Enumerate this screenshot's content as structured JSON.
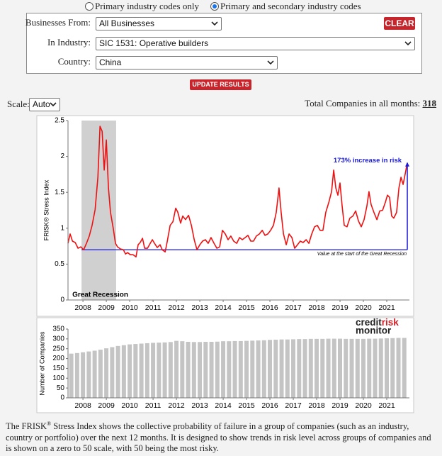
{
  "radio": {
    "options": [
      "Primary industry codes only",
      "Primary and secondary industry codes"
    ],
    "selected": 1
  },
  "form": {
    "fields": [
      {
        "label": "Businesses From:",
        "value": "All Businesses"
      },
      {
        "label": "In Industry:",
        "value": "SIC 1531: Operative builders"
      },
      {
        "label": "Country:",
        "value": "China"
      }
    ],
    "clear": "CLEAR"
  },
  "update": "UPDATE RESULTS",
  "scale": {
    "label": "Scale:",
    "value": "Auto"
  },
  "total": {
    "label": "Total Companies in all months:",
    "value": 318
  },
  "chart_data": [
    {
      "type": "line",
      "y_label": "FRISK® Stress Index",
      "color": "#ee1111",
      "xlim": [
        2007.36,
        2021.97
      ],
      "xticks": [
        2008,
        2009,
        2010,
        2011,
        2012,
        2013,
        2014,
        2015,
        2016,
        2017,
        2018,
        2019,
        2020,
        2021
      ],
      "ylim": [
        0,
        2.5
      ],
      "yticks": [
        0,
        0.5,
        1,
        1.5,
        2,
        2.5
      ],
      "recession": {
        "label": "Great Recession",
        "xrange": [
          2007.94,
          2009.42
        ]
      },
      "baseline": {
        "value": 0.7,
        "label": "Value at the start of the Great Recession",
        "color": "#1a1adb"
      },
      "increase_label": "173% increase in risk",
      "x": [
        2007.36,
        2007.45,
        2007.55,
        2007.67,
        2007.79,
        2007.91,
        2008.03,
        2008.15,
        2008.27,
        2008.39,
        2008.52,
        2008.64,
        2008.73,
        2008.82,
        2008.91,
        2009.0,
        2009.09,
        2009.18,
        2009.3,
        2009.39,
        2009.48,
        2009.61,
        2009.73,
        2009.82,
        2009.91,
        2010.03,
        2010.15,
        2010.27,
        2010.36,
        2010.45,
        2010.55,
        2010.64,
        2010.76,
        2010.88,
        2010.97,
        2011.06,
        2011.18,
        2011.3,
        2011.39,
        2011.52,
        2011.61,
        2011.73,
        2011.85,
        2011.97,
        2012.06,
        2012.18,
        2012.27,
        2012.39,
        2012.52,
        2012.64,
        2012.76,
        2012.88,
        2013.0,
        2013.12,
        2013.24,
        2013.36,
        2013.48,
        2013.61,
        2013.73,
        2013.85,
        2013.97,
        2014.09,
        2014.21,
        2014.33,
        2014.45,
        2014.58,
        2014.7,
        2014.82,
        2014.94,
        2015.06,
        2015.18,
        2015.3,
        2015.42,
        2015.55,
        2015.67,
        2015.79,
        2015.91,
        2016.03,
        2016.15,
        2016.27,
        2016.39,
        2016.48,
        2016.58,
        2016.7,
        2016.82,
        2016.94,
        2017.06,
        2017.18,
        2017.3,
        2017.42,
        2017.55,
        2017.67,
        2017.79,
        2017.91,
        2018.03,
        2018.15,
        2018.27,
        2018.39,
        2018.52,
        2018.64,
        2018.73,
        2018.82,
        2018.91,
        2019.0,
        2019.09,
        2019.18,
        2019.3,
        2019.42,
        2019.55,
        2019.67,
        2019.79,
        2019.91,
        2020.03,
        2020.15,
        2020.24,
        2020.33,
        2020.45,
        2020.58,
        2020.7,
        2020.82,
        2020.94,
        2021.03,
        2021.12,
        2021.21,
        2021.3,
        2021.42,
        2021.52,
        2021.61,
        2021.7,
        2021.79,
        2021.88
      ],
      "values": [
        0.79,
        0.92,
        0.82,
        0.8,
        0.72,
        0.74,
        0.7,
        0.79,
        0.89,
        1.04,
        1.26,
        1.71,
        2.42,
        2.35,
        1.81,
        2.23,
        1.56,
        1.22,
        0.99,
        0.79,
        0.74,
        0.71,
        0.7,
        0.64,
        0.66,
        0.63,
        0.63,
        0.6,
        0.77,
        0.8,
        0.86,
        0.72,
        0.72,
        0.79,
        0.84,
        0.79,
        0.73,
        0.77,
        0.7,
        0.67,
        0.82,
        1.04,
        1.09,
        1.28,
        1.22,
        1.07,
        1.17,
        1.12,
        1.18,
        1.04,
        0.84,
        0.7,
        0.77,
        0.82,
        0.84,
        0.79,
        0.87,
        0.79,
        0.72,
        0.74,
        0.97,
        0.92,
        0.84,
        0.89,
        0.82,
        0.79,
        0.87,
        0.84,
        0.87,
        0.9,
        0.82,
        0.82,
        0.89,
        0.92,
        0.97,
        0.9,
        0.92,
        0.97,
        1.04,
        1.22,
        1.56,
        1.22,
        0.92,
        0.77,
        0.92,
        0.87,
        0.72,
        0.77,
        0.82,
        0.8,
        0.84,
        0.79,
        0.92,
        1.02,
        1.04,
        0.97,
        0.97,
        1.22,
        1.36,
        1.51,
        1.81,
        1.56,
        1.46,
        1.63,
        1.31,
        1.04,
        1.02,
        1.14,
        1.17,
        1.24,
        1.1,
        1.02,
        1.12,
        1.31,
        1.51,
        1.33,
        1.22,
        1.12,
        1.24,
        1.25,
        1.36,
        1.46,
        1.43,
        1.17,
        1.14,
        1.22,
        1.56,
        1.71,
        1.61,
        1.76,
        1.91
      ]
    },
    {
      "type": "bar",
      "y_label": "Number of Companies",
      "color": "#c4c4c4",
      "logo": {
        "credit": "credit",
        "risk": "risk",
        "monitor": "monitor"
      },
      "xlim": [
        2007.36,
        2021.97
      ],
      "xticks": [
        2008,
        2009,
        2010,
        2011,
        2012,
        2013,
        2014,
        2015,
        2016,
        2017,
        2018,
        2019,
        2020,
        2021
      ],
      "ylim": [
        0,
        350
      ],
      "yticks": [
        0,
        50,
        100,
        150,
        200,
        250,
        300,
        350
      ],
      "x": [
        2007.5,
        2007.75,
        2008,
        2008.25,
        2008.5,
        2008.75,
        2009,
        2009.25,
        2009.5,
        2009.75,
        2010,
        2010.25,
        2010.5,
        2010.75,
        2011,
        2011.25,
        2011.5,
        2011.75,
        2012,
        2012.25,
        2012.5,
        2012.75,
        2013,
        2013.25,
        2013.5,
        2013.75,
        2014,
        2014.25,
        2014.5,
        2014.75,
        2015,
        2015.25,
        2015.5,
        2015.75,
        2016,
        2016.25,
        2016.5,
        2016.75,
        2017,
        2017.25,
        2017.5,
        2017.75,
        2018,
        2018.25,
        2018.5,
        2018.75,
        2019,
        2019.25,
        2019.5,
        2019.75,
        2020,
        2020.25,
        2020.5,
        2020.75,
        2021,
        2021.25,
        2021.5,
        2021.75
      ],
      "values": [
        225,
        228,
        232,
        236,
        240,
        245,
        252,
        258,
        264,
        268,
        272,
        274,
        276,
        278,
        280,
        281,
        282,
        284,
        290,
        288,
        285,
        284,
        284,
        285,
        285,
        286,
        288,
        288,
        289,
        289,
        290,
        291,
        292,
        293,
        295,
        296,
        297,
        297,
        298,
        299,
        299,
        300,
        300,
        300,
        301,
        301,
        301,
        300,
        300,
        300,
        300,
        301,
        301,
        302,
        303,
        304,
        305,
        305
      ]
    }
  ],
  "footer": {
    "before": "The FRISK",
    "sup": "®",
    "after": " Stress Index shows the collective probability of failure in a group of companies (such as an industry, country or portfolio) over the next 12 months.  It is designed to show trends in risk level across groups of companies and is shown on a zero to 50 scale, with 50 being the most risky."
  }
}
